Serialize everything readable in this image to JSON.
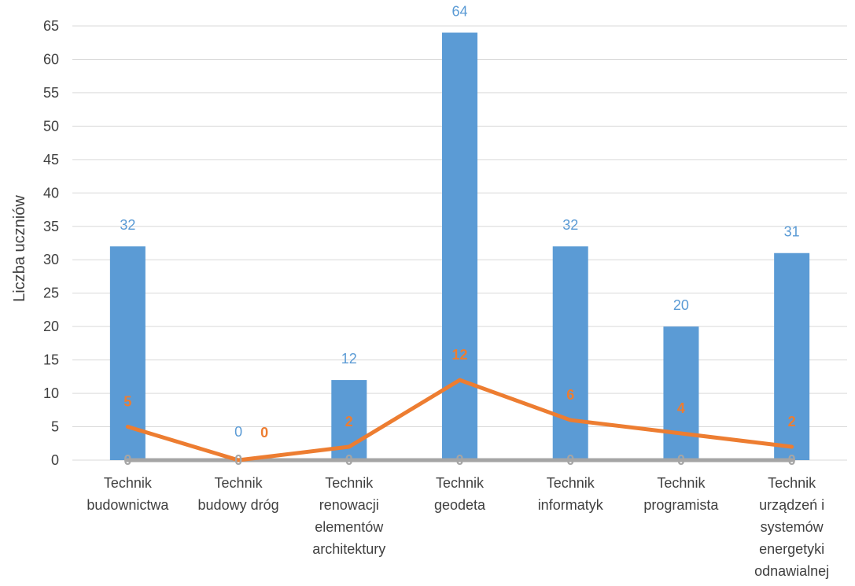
{
  "chart_data": {
    "type": "bar",
    "title": "",
    "xlabel": "",
    "ylabel": "Liczba uczniów",
    "ylim": [
      0,
      65
    ],
    "yticks": [
      0,
      5,
      10,
      15,
      20,
      25,
      30,
      35,
      40,
      45,
      50,
      55,
      60,
      65
    ],
    "grid": true,
    "legend": "none",
    "categories": [
      [
        "Technik",
        "budownictwa"
      ],
      [
        "Technik",
        "budowy dróg"
      ],
      [
        "Technik",
        "renowacji",
        "elementów",
        "architektury"
      ],
      [
        "Technik",
        "geodeta"
      ],
      [
        "Technik",
        "informatyk"
      ],
      [
        "Technik",
        "programista"
      ],
      [
        "Technik",
        "urządzeń i",
        "systemów",
        "energetyki",
        "odnawialnej"
      ]
    ],
    "series": [
      {
        "kind": "bar",
        "color": "#5B9BD5",
        "label_color": "#5B9BD5",
        "values": [
          32,
          0,
          12,
          64,
          32,
          20,
          31
        ]
      },
      {
        "kind": "line",
        "color": "#ED7D31",
        "label_color": "#ED7D31",
        "values": [
          5,
          0,
          2,
          12,
          6,
          4,
          2
        ]
      },
      {
        "kind": "line",
        "color": "#A5A5A5",
        "label_color": "#A5A5A5",
        "values": [
          0,
          0,
          0,
          0,
          0,
          0,
          0
        ]
      }
    ]
  }
}
